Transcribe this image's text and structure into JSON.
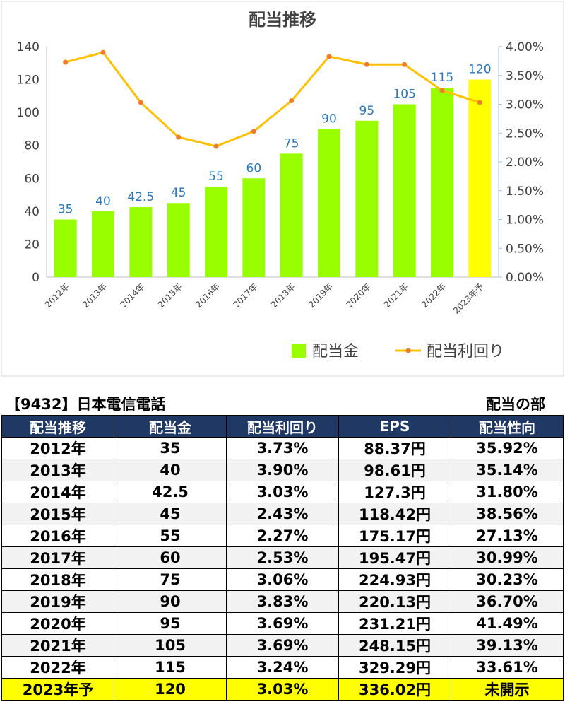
{
  "chart_data": {
    "type": "bar+line",
    "title": "配当推移",
    "categories": [
      "2012年",
      "2013年",
      "2014年",
      "2015年",
      "2016年",
      "2017年",
      "2018年",
      "2019年",
      "2020年",
      "2021年",
      "2022年",
      "2023年予"
    ],
    "series": [
      {
        "name": "配当金",
        "type": "bar",
        "axis": "left",
        "values": [
          35,
          40,
          42.5,
          45,
          55,
          60,
          75,
          90,
          95,
          105,
          115,
          120
        ],
        "labels": [
          "35",
          "40",
          "42.5",
          "45",
          "55",
          "60",
          "75",
          "90",
          "95",
          "105",
          "115",
          "120"
        ],
        "color": "#99ff00",
        "highlight_color": "#ffff00",
        "highlight_index": 11
      },
      {
        "name": "配当利回り",
        "type": "line",
        "axis": "right",
        "values": [
          3.73,
          3.9,
          3.03,
          2.43,
          2.27,
          2.53,
          3.06,
          3.83,
          3.69,
          3.69,
          3.24,
          3.03
        ],
        "color": "#ffc000",
        "marker_color": "#ed7d31"
      }
    ],
    "y_left": {
      "min": 0,
      "max": 140,
      "ticks": [
        0,
        20,
        40,
        60,
        80,
        100,
        120,
        140
      ]
    },
    "y_right": {
      "min": 0,
      "max": 4,
      "ticks": [
        "0.00%",
        "0.50%",
        "1.00%",
        "1.50%",
        "2.00%",
        "2.50%",
        "3.00%",
        "3.50%",
        "4.00%"
      ]
    },
    "legend_position": "bottom-right",
    "label_color": "#2e75b6"
  },
  "table": {
    "title": "【9432】日本電信電話",
    "section_label": "配当の部",
    "headers": [
      "配当推移",
      "配当金",
      "配当利回り",
      "EPS",
      "配当性向"
    ],
    "rows": [
      [
        "2012年",
        "35",
        "3.73%",
        "88.37円",
        "35.92%"
      ],
      [
        "2013年",
        "40",
        "3.90%",
        "98.61円",
        "35.14%"
      ],
      [
        "2014年",
        "42.5",
        "3.03%",
        "127.3円",
        "31.80%"
      ],
      [
        "2015年",
        "45",
        "2.43%",
        "118.42円",
        "38.56%"
      ],
      [
        "2016年",
        "55",
        "2.27%",
        "175.17円",
        "27.13%"
      ],
      [
        "2017年",
        "60",
        "2.53%",
        "195.47円",
        "30.99%"
      ],
      [
        "2018年",
        "75",
        "3.06%",
        "224.93円",
        "30.23%"
      ],
      [
        "2019年",
        "90",
        "3.83%",
        "220.13円",
        "36.70%"
      ],
      [
        "2020年",
        "95",
        "3.69%",
        "231.21円",
        "41.49%"
      ],
      [
        "2021年",
        "105",
        "3.69%",
        "248.15円",
        "39.13%"
      ],
      [
        "2022年",
        "115",
        "3.24%",
        "329.29円",
        "33.61%"
      ],
      [
        "2023年予",
        "120",
        "3.03%",
        "336.02円",
        "未開示"
      ]
    ],
    "highlight_row": 11
  }
}
